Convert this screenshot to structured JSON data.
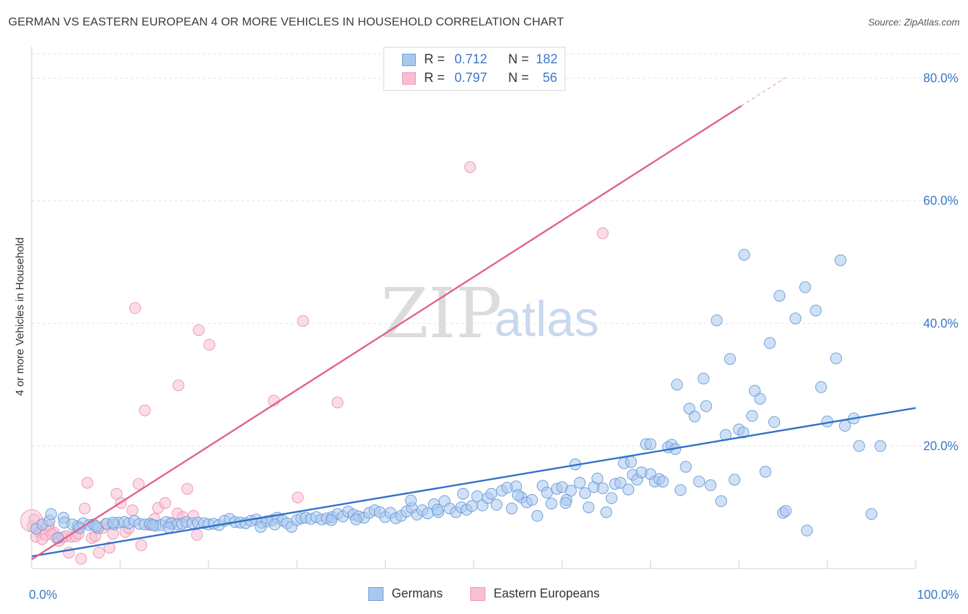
{
  "title": "GERMAN VS EASTERN EUROPEAN 4 OR MORE VEHICLES IN HOUSEHOLD CORRELATION CHART",
  "source": "Source: ZipAtlas.com",
  "legend": {
    "r_label": "R =",
    "n_label": "N =",
    "rows": [
      {
        "r": "0.712",
        "n": "182",
        "color": "#6fa3e0"
      },
      {
        "r": "0.797",
        "n": "56",
        "color": "#f28cb1"
      }
    ]
  },
  "series_labels": {
    "germans": "Germans",
    "eastern": "Eastern Europeans"
  },
  "colors": {
    "blue_fill": "#a9c8f0",
    "blue_stroke": "#6f9ed8",
    "blue_line": "#2f72c8",
    "pink_fill": "#f7bfd2",
    "pink_stroke": "#ee95b6",
    "pink_line": "#e0628e",
    "grid": "#e2e2e2",
    "tick_text": "#3b78c9"
  },
  "watermark": {
    "zip": "ZIP",
    "atlas": "atlas"
  },
  "chart_data": {
    "type": "scatter",
    "title": "GERMAN VS EASTERN EUROPEAN 4 OR MORE VEHICLES IN HOUSEHOLD CORRELATION CHART",
    "xlabel": "",
    "ylabel": "4 or more Vehicles in Household",
    "xlim": [
      0,
      100
    ],
    "ylim": [
      0,
      84
    ],
    "x_tick_labels": [
      "0.0%",
      "100.0%"
    ],
    "y_ticks": [
      20,
      40,
      60,
      80
    ],
    "y_tick_labels": [
      "20.0%",
      "40.0%",
      "60.0%",
      "80.0%"
    ],
    "grid": true,
    "legend_position": "top-center",
    "series": [
      {
        "name": "Germans",
        "r": 0.712,
        "n": 182,
        "trend": {
          "x": [
            0,
            100
          ],
          "y": [
            2.0,
            26.2
          ]
        },
        "points": [
          [
            0.5,
            6.5
          ],
          [
            1.2,
            7.2
          ],
          [
            2,
            7.8
          ],
          [
            2.2,
            8.9
          ],
          [
            3,
            5
          ],
          [
            3.6,
            8.3
          ],
          [
            3.7,
            7.5
          ],
          [
            4.6,
            7.2
          ],
          [
            5.2,
            6.9
          ],
          [
            5.8,
            7.4
          ],
          [
            6.5,
            7.1
          ],
          [
            7,
            7.2
          ],
          [
            7.5,
            6.6
          ],
          [
            8.5,
            7.3
          ],
          [
            9.3,
            7.2
          ],
          [
            9.8,
            7.5
          ],
          [
            10.5,
            7.6
          ],
          [
            11,
            7.4
          ],
          [
            11.6,
            7.8
          ],
          [
            12.2,
            7.3
          ],
          [
            12.8,
            7.2
          ],
          [
            13.4,
            7.3
          ],
          [
            14,
            7.0
          ],
          [
            14.6,
            7.1
          ],
          [
            15.2,
            7.6
          ],
          [
            15.8,
            7.3
          ],
          [
            16.5,
            7.2
          ],
          [
            17,
            7.3
          ],
          [
            17.5,
            7.6
          ],
          [
            18.2,
            7.4
          ],
          [
            18.8,
            7.5
          ],
          [
            19.5,
            7.4
          ],
          [
            20,
            7.2
          ],
          [
            20.6,
            7.3
          ],
          [
            21.2,
            7.1
          ],
          [
            21.8,
            7.8
          ],
          [
            22.4,
            8.1
          ],
          [
            23,
            7.6
          ],
          [
            23.6,
            7.5
          ],
          [
            24.2,
            7.4
          ],
          [
            24.8,
            7.8
          ],
          [
            25.4,
            8.0
          ],
          [
            26,
            7.5
          ],
          [
            26.6,
            7.7
          ],
          [
            27.2,
            7.9
          ],
          [
            27.8,
            8.3
          ],
          [
            28.4,
            7.8
          ],
          [
            28.9,
            7.4
          ],
          [
            29.4,
            6.8
          ],
          [
            30,
            7.9
          ],
          [
            30.5,
            8.2
          ],
          [
            31,
            8.3
          ],
          [
            31.6,
            8.1
          ],
          [
            32.2,
            8.4
          ],
          [
            32.8,
            8.0
          ],
          [
            33.4,
            8.2
          ],
          [
            34,
            8.4
          ],
          [
            34.6,
            8.9
          ],
          [
            35.2,
            8.5
          ],
          [
            35.8,
            9.3
          ],
          [
            36.4,
            8.8
          ],
          [
            37,
            8.5
          ],
          [
            37.6,
            8.3
          ],
          [
            38.2,
            9.1
          ],
          [
            38.8,
            9.5
          ],
          [
            39.4,
            9.2
          ],
          [
            40,
            8.4
          ],
          [
            40.6,
            9.1
          ],
          [
            41.2,
            8.2
          ],
          [
            41.8,
            8.6
          ],
          [
            42.4,
            9.3
          ],
          [
            43,
            9.9
          ],
          [
            43.6,
            8.8
          ],
          [
            44.2,
            9.5
          ],
          [
            44.8,
            9.0
          ],
          [
            45.5,
            10.5
          ],
          [
            46,
            9.2
          ],
          [
            46.7,
            11.0
          ],
          [
            47.3,
            9.8
          ],
          [
            48,
            9.2
          ],
          [
            48.6,
            10.0
          ],
          [
            49.2,
            9.6
          ],
          [
            49.8,
            10.2
          ],
          [
            50.4,
            11.8
          ],
          [
            51,
            10.3
          ],
          [
            51.6,
            11.5
          ],
          [
            52,
            12.2
          ],
          [
            52.6,
            10.4
          ],
          [
            53.2,
            12.7
          ],
          [
            53.8,
            13.2
          ],
          [
            54.3,
            9.8
          ],
          [
            54.8,
            13.4
          ],
          [
            55.4,
            11.6
          ],
          [
            56,
            10.8
          ],
          [
            56.6,
            11.2
          ],
          [
            57.2,
            8.6
          ],
          [
            57.8,
            13.5
          ],
          [
            58.3,
            12.4
          ],
          [
            58.8,
            10.6
          ],
          [
            59.4,
            13.0
          ],
          [
            60,
            13.3
          ],
          [
            60.5,
            11.2
          ],
          [
            61,
            12.7
          ],
          [
            61.5,
            17.0
          ],
          [
            62,
            14.0
          ],
          [
            62.6,
            12.3
          ],
          [
            63,
            10.0
          ],
          [
            63.6,
            13.3
          ],
          [
            64,
            14.7
          ],
          [
            64.6,
            13.1
          ],
          [
            65,
            9.2
          ],
          [
            65.6,
            11.5
          ],
          [
            66,
            13.8
          ],
          [
            66.6,
            14.0
          ],
          [
            67,
            17.2
          ],
          [
            67.5,
            12.9
          ],
          [
            68,
            15.3
          ],
          [
            68.5,
            14.5
          ],
          [
            69,
            15.7
          ],
          [
            69.5,
            20.3
          ],
          [
            70,
            15.4
          ],
          [
            70.5,
            14.2
          ],
          [
            71,
            14.6
          ],
          [
            71.4,
            14.2
          ],
          [
            72,
            19.8
          ],
          [
            72.4,
            20.2
          ],
          [
            72.8,
            19.5
          ],
          [
            73.4,
            12.8
          ],
          [
            74,
            16.6
          ],
          [
            74.4,
            26.1
          ],
          [
            75,
            24.8
          ],
          [
            75.5,
            14.2
          ],
          [
            76,
            31.0
          ],
          [
            76.3,
            26.5
          ],
          [
            76.8,
            13.6
          ],
          [
            77.5,
            40.5
          ],
          [
            78,
            11.0
          ],
          [
            78.5,
            21.8
          ],
          [
            79,
            34.2
          ],
          [
            79.5,
            14.5
          ],
          [
            80,
            22.7
          ],
          [
            80.5,
            22.2
          ],
          [
            80.6,
            51.2
          ],
          [
            81.5,
            24.9
          ],
          [
            81.8,
            29.0
          ],
          [
            82.4,
            27.7
          ],
          [
            83,
            15.8
          ],
          [
            83.5,
            36.8
          ],
          [
            84,
            23.9
          ],
          [
            84.6,
            44.5
          ],
          [
            85,
            9.1
          ],
          [
            85.3,
            9.4
          ],
          [
            86.4,
            40.8
          ],
          [
            87.5,
            45.9
          ],
          [
            87.7,
            6.2
          ],
          [
            88.7,
            42.1
          ],
          [
            89.3,
            29.6
          ],
          [
            90,
            24.0
          ],
          [
            91,
            34.3
          ],
          [
            91.5,
            50.3
          ],
          [
            92,
            23.3
          ],
          [
            93,
            24.5
          ],
          [
            93.6,
            20.0
          ],
          [
            95,
            8.9
          ],
          [
            96,
            20.0
          ],
          [
            70,
            20.3
          ],
          [
            73,
            30.0
          ],
          [
            67.8,
            17.4
          ],
          [
            60.4,
            10.7
          ],
          [
            55,
            12.0
          ],
          [
            48.8,
            12.2
          ],
          [
            42.9,
            11.1
          ],
          [
            45.9,
            9.6
          ],
          [
            36.7,
            8.0
          ],
          [
            33.9,
            7.9
          ],
          [
            27.5,
            7.2
          ],
          [
            25.9,
            6.8
          ],
          [
            15.5,
            6.7
          ],
          [
            13.7,
            7.1
          ],
          [
            9.2,
            7.5
          ],
          [
            7.3,
            6.9
          ],
          [
            5.4,
            6.6
          ]
        ]
      },
      {
        "name": "Eastern Europeans",
        "r": 0.797,
        "n": 56,
        "trend": {
          "x": [
            0,
            80.3
          ],
          "y": [
            1.5,
            75.5
          ]
        },
        "points": [
          [
            0.1,
            6.9
          ],
          [
            0.5,
            5.2
          ],
          [
            0.9,
            6.0
          ],
          [
            1.2,
            4.8
          ],
          [
            1.6,
            5.5
          ],
          [
            2,
            6.2
          ],
          [
            2.5,
            5.9
          ],
          [
            2.8,
            5.0
          ],
          [
            3.1,
            4.5
          ],
          [
            3.5,
            5.1
          ],
          [
            3.9,
            5.3
          ],
          [
            4.2,
            2.6
          ],
          [
            4.5,
            5.2
          ],
          [
            5,
            5.3
          ],
          [
            5.3,
            5.7
          ],
          [
            5.6,
            1.6
          ],
          [
            6,
            9.8
          ],
          [
            6.3,
            14.0
          ],
          [
            6.8,
            5.0
          ],
          [
            7.2,
            5.3
          ],
          [
            7.6,
            2.6
          ],
          [
            8,
            6.6
          ],
          [
            8.4,
            7.3
          ],
          [
            8.8,
            3.4
          ],
          [
            9.2,
            5.7
          ],
          [
            9.6,
            12.2
          ],
          [
            10.1,
            10.7
          ],
          [
            10.6,
            6.0
          ],
          [
            11,
            6.6
          ],
          [
            11.4,
            9.5
          ],
          [
            11.7,
            42.5
          ],
          [
            12.1,
            13.8
          ],
          [
            12.4,
            3.8
          ],
          [
            12.8,
            25.8
          ],
          [
            13.3,
            7.1
          ],
          [
            13.9,
            8.1
          ],
          [
            14.3,
            9.9
          ],
          [
            15.1,
            10.7
          ],
          [
            15.7,
            7.5
          ],
          [
            16.5,
            9.0
          ],
          [
            16.6,
            29.9
          ],
          [
            17.1,
            8.4
          ],
          [
            17.6,
            13.0
          ],
          [
            18.3,
            8.6
          ],
          [
            18.7,
            5.5
          ],
          [
            18.9,
            38.9
          ],
          [
            20.1,
            36.5
          ],
          [
            27.4,
            27.4
          ],
          [
            30.1,
            11.6
          ],
          [
            30.7,
            40.4
          ],
          [
            34.6,
            27.1
          ],
          [
            49.6,
            65.5
          ],
          [
            64.6,
            54.7
          ],
          [
            0.3,
            8.0
          ],
          [
            1.9,
            7.0
          ],
          [
            2.3,
            5.6
          ]
        ]
      }
    ]
  }
}
